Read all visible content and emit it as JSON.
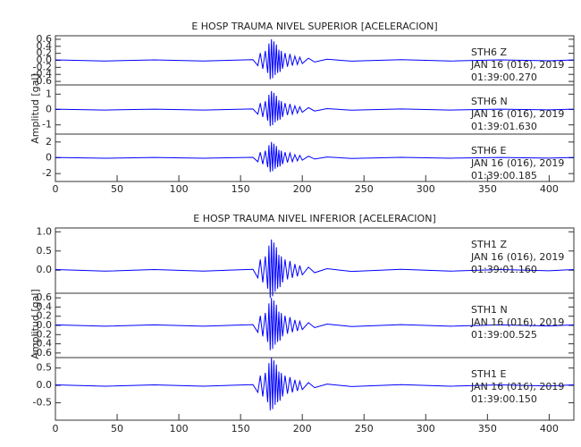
{
  "chart_data": [
    {
      "type": "line",
      "title": "E HOSP TRAUMA NIVEL SUPERIOR [ACELERACION]",
      "ylabel": "Amplitud [gal]",
      "xlim": [
        0,
        420
      ],
      "xticks": [
        0,
        50,
        100,
        150,
        200,
        250,
        300,
        350,
        400
      ],
      "x": [
        0,
        40,
        80,
        120,
        160,
        164,
        166,
        168,
        170,
        172,
        173,
        174,
        175,
        176,
        177,
        178,
        179,
        180,
        181,
        182,
        183,
        184,
        186,
        188,
        190,
        192,
        194,
        196,
        198,
        200,
        205,
        210,
        220,
        240,
        280,
        320,
        360,
        400,
        420
      ],
      "series": [
        {
          "name": "STH6  Z",
          "date": "JAN 16 (016), 2019",
          "time": "01:39:00.270",
          "color": "#0000ff",
          "ylim": [
            -0.7,
            0.7
          ],
          "yticks": [
            0.6,
            0.4,
            0.2,
            {
              "value": 0,
              "label": "0.0"
            },
            -0.2,
            -0.4,
            -0.6
          ],
          "values": [
            0.012,
            -0.018,
            0.012,
            -0.018,
            0.018,
            -0.15,
            0.21,
            -0.24,
            0.27,
            -0.36,
            0.48,
            -0.54,
            0.6,
            -0.51,
            0.54,
            -0.42,
            0.45,
            -0.36,
            0.3,
            -0.33,
            0.27,
            -0.24,
            0.21,
            -0.18,
            0.18,
            -0.15,
            0.12,
            -0.12,
            0.09,
            -0.09,
            0.06,
            -0.048,
            0.03,
            -0.024,
            0.018,
            -0.018,
            0.012,
            -0.012,
            0.012
          ]
        },
        {
          "name": "STH6  N",
          "date": "JAN 16 (016), 2019",
          "time": "01:39:01.630",
          "color": "#0000ff",
          "ylim": [
            -1.6,
            1.6
          ],
          "yticks": [
            -1,
            0,
            1
          ],
          "values": [
            0.024,
            -0.036,
            0.024,
            -0.036,
            0.036,
            -0.3,
            0.42,
            -0.48,
            0.54,
            -0.72,
            0.96,
            -1.08,
            1.2,
            -1.02,
            1.08,
            -0.84,
            0.9,
            -0.72,
            0.6,
            -0.66,
            0.54,
            -0.48,
            0.42,
            -0.36,
            0.36,
            -0.3,
            0.24,
            -0.24,
            0.18,
            -0.18,
            0.12,
            -0.096,
            0.06,
            -0.048,
            0.036,
            -0.036,
            0.024,
            -0.024,
            0.024
          ]
        },
        {
          "name": "STH6  E",
          "date": "JAN 16 (016), 2019",
          "time": "01:39:00.185",
          "color": "#0000ff",
          "ylim": [
            -3,
            3
          ],
          "yticks": [
            -2,
            0,
            2
          ],
          "values": [
            0.04,
            -0.06,
            0.04,
            -0.06,
            0.06,
            -0.5,
            0.7,
            -0.8,
            0.9,
            -1.2,
            1.6,
            -1.8,
            2.0,
            -1.7,
            1.8,
            -1.4,
            1.5,
            -1.2,
            1.0,
            -1.1,
            0.9,
            -0.8,
            0.7,
            -0.6,
            0.6,
            -0.5,
            0.4,
            -0.4,
            0.3,
            -0.3,
            0.2,
            -0.16,
            0.1,
            -0.08,
            0.06,
            -0.06,
            0.04,
            -0.04,
            0.04
          ]
        }
      ]
    },
    {
      "type": "line",
      "title": "E HOSP TRAUMA NIVEL INFERIOR [ACELERACION]",
      "ylabel": "Amplitud [gal]",
      "xlim": [
        0,
        420
      ],
      "xticks": [
        0,
        50,
        100,
        150,
        200,
        250,
        300,
        350,
        400
      ],
      "x": [
        0,
        40,
        80,
        120,
        160,
        164,
        166,
        168,
        170,
        172,
        173,
        174,
        175,
        176,
        177,
        178,
        179,
        180,
        181,
        182,
        183,
        184,
        186,
        188,
        190,
        192,
        194,
        196,
        198,
        200,
        205,
        210,
        220,
        240,
        280,
        320,
        360,
        400,
        420
      ],
      "series": [
        {
          "name": "STH1  Z",
          "date": "JAN 16 (016), 2019",
          "time": "01:39:01.160",
          "color": "#0000ff",
          "ylim": [
            -0.6,
            1.1
          ],
          "yticks": [
            {
              "value": 0,
              "label": "0.0"
            },
            0.5,
            {
              "value": 1,
              "label": "1.0"
            }
          ],
          "values": [
            0.016,
            -0.024,
            0.016,
            -0.024,
            0.024,
            -0.2,
            0.28,
            -0.32,
            0.36,
            -0.48,
            0.64,
            -0.72,
            0.8,
            -0.68,
            0.72,
            -0.56,
            0.6,
            -0.48,
            0.4,
            -0.44,
            0.36,
            -0.32,
            0.28,
            -0.24,
            0.24,
            -0.2,
            0.16,
            -0.16,
            0.12,
            -0.12,
            0.08,
            -0.064,
            0.04,
            -0.032,
            0.024,
            -0.024,
            0.016,
            -0.016,
            0.016
          ]
        },
        {
          "name": "STH1  N",
          "date": "JAN 16 (016), 2019",
          "time": "01:39:00.525",
          "color": "#0000ff",
          "ylim": [
            -0.7,
            0.7
          ],
          "yticks": [
            0.6,
            0.4,
            0.2,
            {
              "value": 0,
              "label": "0.0"
            },
            -0.2,
            -0.4,
            -0.6
          ],
          "values": [
            0.012,
            -0.018,
            0.012,
            -0.018,
            0.018,
            -0.15,
            0.21,
            -0.24,
            0.27,
            -0.36,
            0.48,
            -0.54,
            0.6,
            -0.51,
            0.54,
            -0.42,
            0.45,
            -0.36,
            0.3,
            -0.33,
            0.27,
            -0.24,
            0.21,
            -0.18,
            0.18,
            -0.15,
            0.12,
            -0.12,
            0.09,
            -0.09,
            0.06,
            -0.048,
            0.03,
            -0.024,
            0.018,
            -0.018,
            0.012,
            -0.012,
            0.012
          ]
        },
        {
          "name": "STH1  E",
          "date": "JAN 16 (016), 2019",
          "time": "01:39:00.150",
          "color": "#0000ff",
          "ylim": [
            -1,
            0.8
          ],
          "yticks": [
            -0.5,
            {
              "value": 0,
              "label": "0.0"
            },
            0.5
          ],
          "values": [
            0.016,
            -0.024,
            0.016,
            -0.024,
            0.024,
            -0.2,
            0.28,
            -0.32,
            0.36,
            -0.48,
            0.64,
            -0.72,
            0.8,
            -0.68,
            0.72,
            -0.56,
            0.6,
            -0.48,
            0.4,
            -0.44,
            0.36,
            -0.32,
            0.28,
            -0.24,
            0.24,
            -0.2,
            0.16,
            -0.16,
            0.12,
            -0.12,
            0.08,
            -0.064,
            0.04,
            -0.032,
            0.024,
            -0.024,
            0.016,
            -0.016,
            0.016
          ]
        }
      ]
    }
  ]
}
